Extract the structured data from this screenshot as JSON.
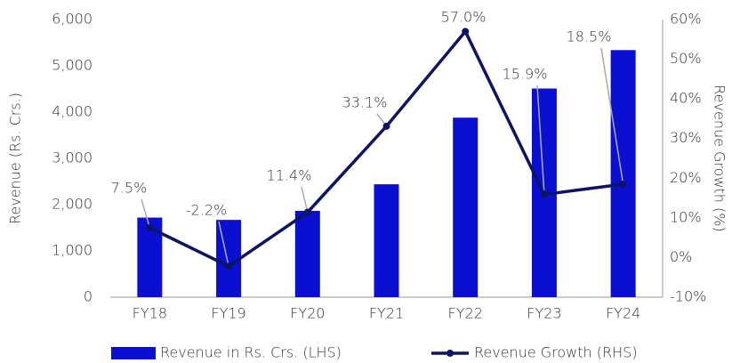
{
  "chart_data": {
    "type": "bar",
    "categories": [
      "FY18",
      "FY19",
      "FY20",
      "FY21",
      "FY22",
      "FY23",
      "FY24"
    ],
    "y_label": "Revenue (Rs. Crs.)",
    "y2_label": "Revenue Growth (%)",
    "ylim": [
      0,
      6000
    ],
    "yticks": [
      0,
      {
        "value": 1000,
        "label": "1,000"
      },
      {
        "value": 2000,
        "label": "2,000"
      },
      {
        "value": 3000,
        "label": "3,000"
      },
      {
        "value": 4000,
        "label": "4,000"
      },
      {
        "value": 5000,
        "label": "5,000"
      },
      {
        "value": 6000,
        "label": "6,000"
      }
    ],
    "y2lim": [
      -10,
      60
    ],
    "y2ticks": [
      {
        "value": -10,
        "label": "-10%"
      },
      {
        "value": 0,
        "label": "0%"
      },
      {
        "value": 10,
        "label": "10%"
      },
      {
        "value": 20,
        "label": "20%"
      },
      {
        "value": 30,
        "label": "30%"
      },
      {
        "value": 40,
        "label": "40%"
      },
      {
        "value": 50,
        "label": "50%"
      },
      {
        "value": 60,
        "label": "60%"
      }
    ],
    "series": [
      {
        "name": "Revenue in Rs. Crs. (LHS)",
        "type": "bar",
        "color": "#0a0fd2",
        "values": [
          1720,
          1670,
          1865,
          2440,
          3880,
          4510,
          5340
        ]
      },
      {
        "name": "Revenue Growth (RHS)",
        "type": "line",
        "axis": "y2",
        "color": "#0d1466",
        "values": [
          7.5,
          -2.2,
          11.4,
          33.1,
          57.0,
          15.9,
          18.5
        ],
        "value_labels": [
          "7.5%",
          "-2.2%",
          "11.4%",
          "33.1%",
          "57.0%",
          "15.9%",
          "18.5%"
        ]
      }
    ],
    "legend": "bottom"
  }
}
